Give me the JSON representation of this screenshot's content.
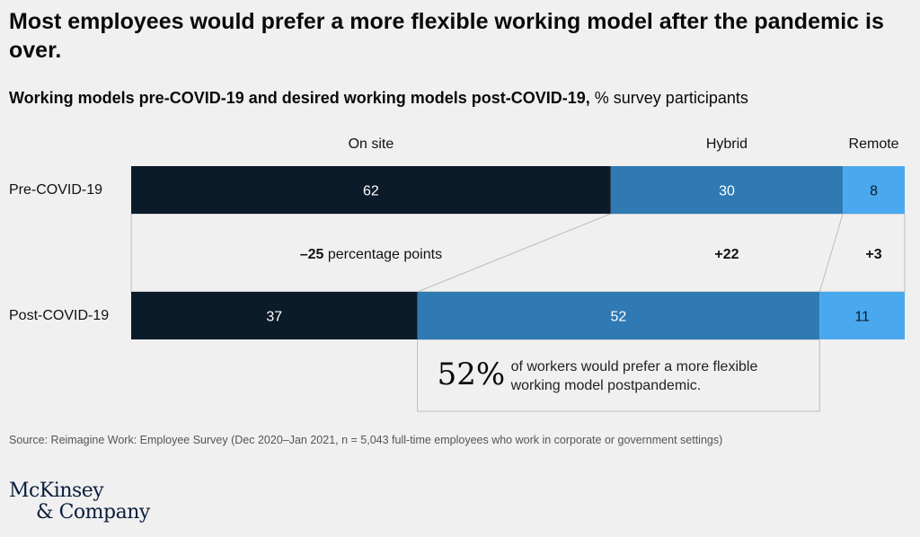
{
  "title": "Most employees would prefer a more flexible working model after the pandemic is over.",
  "subtitle_bold": "Working models pre-COVID-19 and desired working models post-COVID-19,",
  "subtitle_rest": " % survey participants",
  "source": "Source: Reimagine Work: Employee Survey (Dec 2020–Jan 2021, n = 5,043 full-time employees who work in corporate or government settings)",
  "logo": {
    "line1": "McKinsey",
    "line2": "& Company"
  },
  "colors": {
    "on_site": "#0c1b2a",
    "hybrid": "#2f7ab3",
    "remote": "#4aa8ef",
    "connector": "#bdbdbd",
    "background": "#f0f0f0"
  },
  "callout": {
    "value": "52%",
    "text": "of workers would prefer a more flexible working model postpandemic."
  },
  "chart_data": {
    "type": "bar",
    "orientation": "horizontal-stacked-100",
    "categories": [
      "Pre-COVID-19",
      "Post-COVID-19"
    ],
    "series": [
      {
        "name": "On site",
        "values": [
          62,
          37
        ]
      },
      {
        "name": "Hybrid",
        "values": [
          30,
          52
        ]
      },
      {
        "name": "Remote",
        "values": [
          8,
          11
        ]
      }
    ],
    "changes": [
      {
        "bold": "–25",
        "rest": " percentage points"
      },
      {
        "bold": "+22",
        "rest": ""
      },
      {
        "bold": "+3",
        "rest": ""
      }
    ],
    "xlim": [
      0,
      100
    ],
    "legend": "top"
  }
}
